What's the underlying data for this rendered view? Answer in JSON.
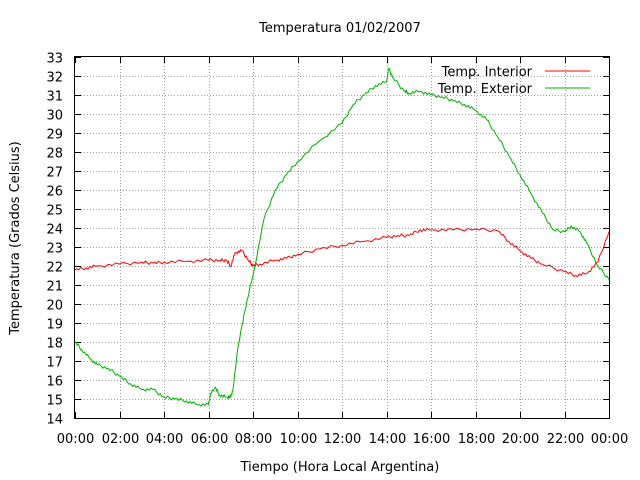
{
  "chart_data": {
    "type": "line",
    "title": "Temperatura 01/02/2007",
    "xlabel": "Tiempo (Hora Local Argentina)",
    "ylabel": "Temperatura (Grados Celsius)",
    "xlim": [
      0,
      24
    ],
    "ylim": [
      14,
      33
    ],
    "x_tick_labels": [
      "00:00",
      "02:00",
      "04:00",
      "06:00",
      "08:00",
      "10:00",
      "12:00",
      "14:00",
      "16:00",
      "18:00",
      "20:00",
      "22:00",
      "00:00"
    ],
    "y_ticks": [
      14,
      15,
      16,
      17,
      18,
      19,
      20,
      21,
      22,
      23,
      24,
      25,
      26,
      27,
      28,
      29,
      30,
      31,
      32,
      33
    ],
    "grid": true,
    "legend_position": "top-right",
    "series": [
      {
        "name": "Temp. Interior",
        "color": "#ff0000",
        "x": [
          0,
          0.5,
          1,
          2,
          3,
          3.5,
          4,
          5,
          6,
          6.5,
          6.8,
          7.0,
          7.2,
          7.5,
          7.8,
          8.0,
          8.3,
          9,
          9.5,
          10,
          11,
          12,
          13,
          14,
          14.5,
          15,
          15.5,
          16,
          17,
          18,
          19,
          19.5,
          20,
          20.5,
          21,
          22,
          22.5,
          23,
          23.5,
          24
        ],
        "y": [
          21.8,
          21.9,
          22.0,
          22.1,
          22.2,
          22.15,
          22.2,
          22.25,
          22.3,
          22.3,
          22.3,
          22.0,
          22.7,
          22.8,
          22.3,
          22.0,
          22.1,
          22.3,
          22.4,
          22.6,
          22.9,
          23.1,
          23.3,
          23.5,
          23.6,
          23.6,
          23.9,
          23.9,
          23.9,
          23.95,
          23.85,
          23.3,
          22.8,
          22.4,
          22.1,
          21.7,
          21.5,
          21.6,
          22.2,
          23.8
        ]
      },
      {
        "name": "Temp. Exterior",
        "color": "#00b000",
        "x": [
          0,
          0.3,
          0.7,
          1,
          1.5,
          2,
          2.5,
          3,
          3.5,
          4,
          4.5,
          5,
          5.5,
          6,
          6.1,
          6.3,
          6.5,
          6.8,
          7.0,
          7.1,
          7.3,
          7.6,
          8,
          8.5,
          9,
          9.5,
          10,
          11,
          12,
          12.5,
          13,
          13.5,
          14,
          14.1,
          14.3,
          14.8,
          15,
          15.5,
          16,
          16.5,
          17,
          17.5,
          18,
          18.5,
          19,
          19.5,
          20,
          20.5,
          21,
          21.5,
          22,
          22.3,
          22.7,
          23,
          23.5,
          24
        ],
        "y": [
          18.0,
          17.6,
          17.1,
          16.8,
          16.6,
          16.2,
          15.8,
          15.5,
          15.5,
          15.1,
          15.0,
          14.9,
          14.7,
          14.7,
          15.3,
          15.6,
          15.2,
          15.1,
          15.1,
          15.5,
          17.5,
          19.5,
          21.5,
          24.5,
          26.0,
          26.8,
          27.5,
          28.6,
          29.5,
          30.5,
          31.0,
          31.5,
          31.7,
          32.4,
          31.9,
          31.2,
          31.1,
          31.2,
          31.0,
          30.9,
          30.7,
          30.5,
          30.2,
          29.7,
          28.8,
          27.8,
          26.8,
          25.8,
          24.8,
          23.9,
          23.8,
          24.1,
          23.8,
          23.2,
          22.0,
          21.3
        ]
      }
    ]
  }
}
